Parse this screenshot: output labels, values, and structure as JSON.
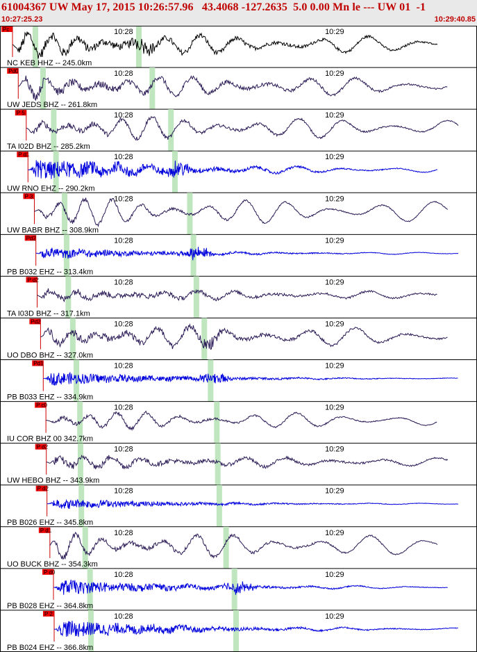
{
  "header": {
    "title": "61004367 UW May 17, 2015 10:26:57.96   43.4068 -127.2635  5.0 0.00 Mn le --- UW 01  -1",
    "start_time": "10:27:25.23",
    "end_time": "10:29:40.85"
  },
  "colors": {
    "header_bg": "#e9e9e9",
    "header_text": "#c00000",
    "pick_fill": "#ee0000",
    "pick_line": "#cc0000",
    "window_band": "#bfe6bf",
    "trace_broadband": "#2a1a55",
    "trace_short_period": "#0000dd",
    "trace_first": "#000000"
  },
  "chart_data": {
    "type": "line",
    "x_axis": {
      "unit": "time",
      "start": "10:27:25.23",
      "end": "10:29:40.85",
      "tick_labels": [
        "10:28",
        "10:29"
      ]
    },
    "traces": [
      {
        "station": "NC KEB HHZ",
        "distance_km": 245.0,
        "label": "NC KEB HHZ -- 245.0km",
        "pick": "Pc",
        "kind": "black",
        "amp": 0.65,
        "noise": 0.35,
        "burst": true
      },
      {
        "station": "UW JEDS BHZ",
        "distance_km": 261.8,
        "label": "UW JEDS BHZ -- 261.8km",
        "pick": "Pd0",
        "kind": "broadband",
        "amp": 0.7,
        "noise": 0.3,
        "burst": false
      },
      {
        "station": "TA I02D BHZ",
        "distance_km": 285.2,
        "label": "TA I02D BHZ -- 285.2km",
        "pick": "P 5",
        "kind": "broadband",
        "amp": 0.75,
        "noise": 0.2,
        "burst": false
      },
      {
        "station": "UW RNO EHZ",
        "distance_km": 290.2,
        "label": "UW RNO EHZ -- 290.2km",
        "pick": "P d1",
        "kind": "short",
        "amp": 0.25,
        "noise": 0.7,
        "burst": true
      },
      {
        "station": "UW BABR BHZ",
        "distance_km": 308.9,
        "label": "UW BABR BHZ -- 308.9km",
        "pick": "P 3",
        "kind": "broadband",
        "amp": 0.85,
        "noise": 0.15,
        "burst": false
      },
      {
        "station": "PB B032 EHZ",
        "distance_km": 313.4,
        "label": "PB B032 EHZ -- 313.4km",
        "pick": "Pd2",
        "kind": "short",
        "amp": 0.08,
        "noise": 0.35,
        "burst": true
      },
      {
        "station": "TA I03D BHZ",
        "distance_km": 317.1,
        "label": "TA I03D BHZ -- 317.1km",
        "pick": "P d2",
        "kind": "broadband",
        "amp": 0.3,
        "noise": 0.25,
        "burst": false
      },
      {
        "station": "UO DBO BHZ",
        "distance_km": 327.0,
        "label": "UO DBO BHZ -- 327.0km",
        "pick": "Pd2",
        "kind": "broadband",
        "amp": 0.7,
        "noise": 0.3,
        "burst": true
      },
      {
        "station": "PB B033 EHZ",
        "distance_km": 334.9,
        "label": "PB B033 EHZ -- 334.9km",
        "pick": "Pd1",
        "kind": "short",
        "amp": 0.05,
        "noise": 0.45,
        "burst": true
      },
      {
        "station": "IU COR BHZ 00",
        "distance_km": 342.7,
        "label": "IU COR BHZ 00 342.7km",
        "pick": "P c0",
        "kind": "broadband",
        "amp": 0.55,
        "noise": 0.15,
        "burst": false
      },
      {
        "station": "UW HEBO BHZ",
        "distance_km": 343.9,
        "label": "UW HEBO BHZ -- 343.9km",
        "pick": "P d2",
        "kind": "broadband",
        "amp": 0.35,
        "noise": 0.25,
        "burst": false
      },
      {
        "station": "PB B026 EHZ",
        "distance_km": 345.8,
        "label": "PB B026 EHZ -- 345.8km",
        "pick": "P d2",
        "kind": "short",
        "amp": 0.05,
        "noise": 0.35,
        "burst": false
      },
      {
        "station": "UO BUCK BHZ",
        "distance_km": 354.3,
        "label": "UO BUCK BHZ -- 354.3km",
        "pick": "P d1",
        "kind": "broadband",
        "amp": 0.8,
        "noise": 0.2,
        "burst": false
      },
      {
        "station": "PB B028 EHZ",
        "distance_km": 364.8,
        "label": "PB B028 EHZ -- 364.8km",
        "pick": "P d0",
        "kind": "short",
        "amp": 0.12,
        "noise": 0.5,
        "burst": true
      },
      {
        "station": "PB B024 EHZ",
        "distance_km": 366.8,
        "label": "PB B024 EHZ -- 366.8km",
        "pick": "P 2",
        "kind": "short",
        "amp": 0.12,
        "noise": 0.6,
        "burst": false
      }
    ]
  }
}
